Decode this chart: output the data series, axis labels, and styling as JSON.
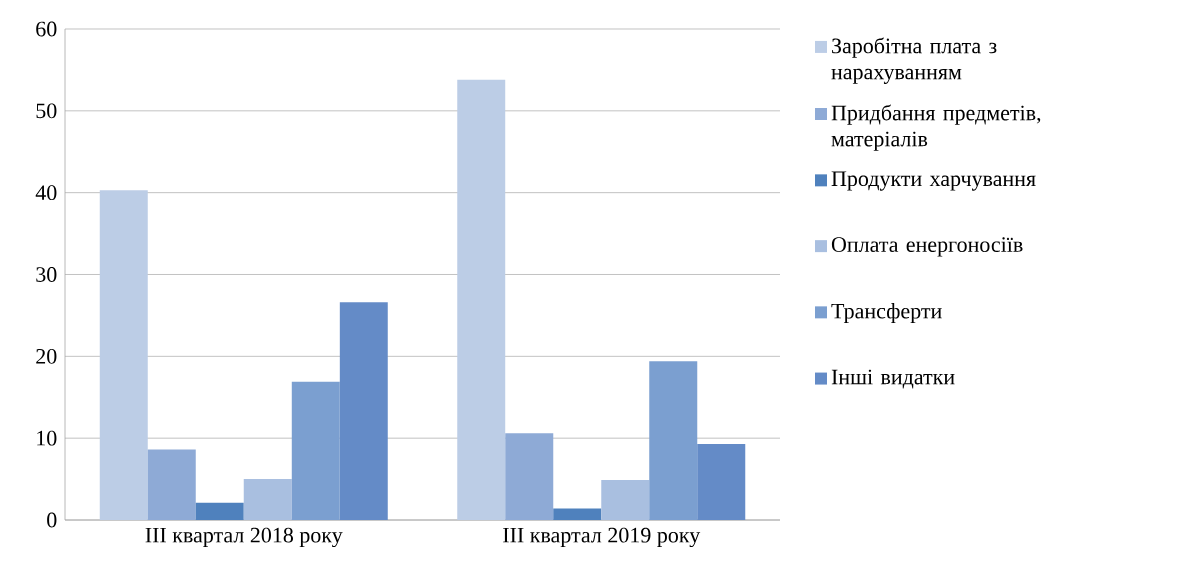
{
  "chart_data": {
    "type": "bar",
    "categories": [
      "III квартал 2018 року",
      "III квартал 2019 року"
    ],
    "series": [
      {
        "name": "Заробітна плата з нарахуванням",
        "color": "#bccde6",
        "values": [
          40.3,
          53.8
        ]
      },
      {
        "name": "Придбання предметів, матеріалів",
        "color": "#8eaad6",
        "values": [
          8.6,
          10.6
        ]
      },
      {
        "name": "Продукти харчування",
        "color": "#4f81bd",
        "values": [
          2.1,
          1.4
        ]
      },
      {
        "name": "Оплата енергоносіїв",
        "color": "#a9bfe0",
        "values": [
          5.0,
          4.9
        ]
      },
      {
        "name": "Трансферти",
        "color": "#7b9fd0",
        "values": [
          16.9,
          19.4
        ]
      },
      {
        "name": "Інші видатки",
        "color": "#648bc7",
        "values": [
          26.6,
          9.3
        ]
      }
    ],
    "ylim": [
      0,
      60
    ],
    "yticks": [
      0,
      10,
      20,
      30,
      40,
      50,
      60
    ],
    "grid": "y",
    "legend": "right"
  }
}
